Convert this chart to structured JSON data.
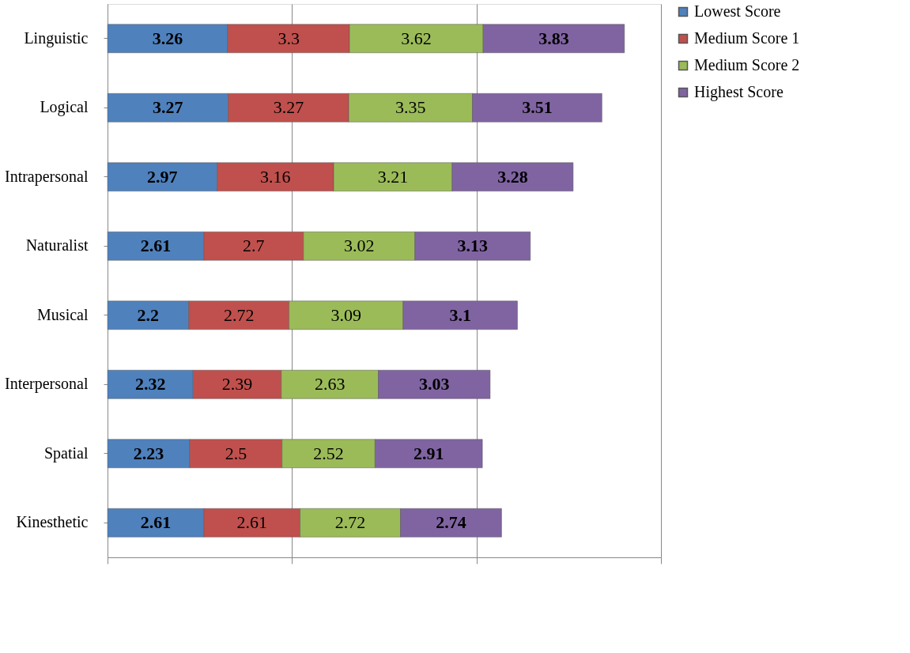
{
  "chart_data": {
    "type": "bar",
    "orientation": "horizontal",
    "stacked": true,
    "data_labels": true,
    "categories": [
      "Linguistic",
      "Logical",
      "Intrapersonal",
      "Naturalist",
      "Musical",
      "Interpersonal",
      "Spatial",
      "Kinesthetic"
    ],
    "series": [
      {
        "name": "Lowest Score",
        "color": "#4f81bd",
        "values": [
          3.26,
          3.27,
          2.97,
          2.61,
          2.2,
          2.32,
          2.23,
          2.61
        ]
      },
      {
        "name": "Medium Score 1",
        "color": "#c0504d",
        "values": [
          3.3,
          3.27,
          3.16,
          2.7,
          2.72,
          2.39,
          2.5,
          2.61
        ]
      },
      {
        "name": "Medium Score 2",
        "color": "#9bbb59",
        "values": [
          3.62,
          3.35,
          3.21,
          3.02,
          3.09,
          2.63,
          2.52,
          2.72
        ]
      },
      {
        "name": "Highest Score",
        "color": "#8064a2",
        "values": [
          3.83,
          3.51,
          3.28,
          3.13,
          3.1,
          3.03,
          2.91,
          2.74
        ]
      }
    ],
    "xlim": [
      0,
      15
    ],
    "xticks": [
      {
        "value": 0,
        "label": null
      },
      {
        "value": 5,
        "label": null
      },
      {
        "value": 10,
        "label": null
      },
      {
        "value": 15,
        "label": null
      }
    ],
    "grid": "x",
    "tick_labels": "y",
    "legend": "right"
  }
}
